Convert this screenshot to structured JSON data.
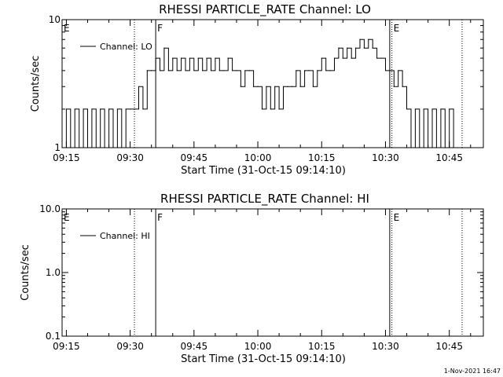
{
  "footer": {
    "timestamp": "1-Nov-2021 16:47"
  },
  "chart_data": [
    {
      "type": "line",
      "title": "RHESSI PARTICLE_RATE Channel: LO",
      "xlabel": "Start Time (31-Oct-15 09:14:10)",
      "ylabel": "Counts/sec",
      "yscale": "log",
      "ylim": [
        1,
        10
      ],
      "yticks": [
        {
          "v": 1,
          "label": "1"
        },
        {
          "v": 10,
          "label": "10"
        }
      ],
      "xlim": [
        "09:14",
        "10:53"
      ],
      "xticks": [
        "09:15",
        "09:30",
        "09:45",
        "10:00",
        "10:15",
        "10:30",
        "10:45"
      ],
      "grid": false,
      "legend": {
        "placement": "top-left",
        "label": "Channel: LO"
      },
      "flag_lines": [
        {
          "time": "09:14",
          "label": "E",
          "style": "solid"
        },
        {
          "time": "09:31",
          "label": "",
          "style": "dotted"
        },
        {
          "time": "09:36",
          "label": "F",
          "style": "solid"
        },
        {
          "time": "10:31",
          "label": "",
          "style": "solid"
        },
        {
          "time": "10:31.5",
          "label": "E",
          "style": "dotted"
        },
        {
          "time": "10:48",
          "label": "",
          "style": "dotted"
        }
      ],
      "series": [
        {
          "name": "Channel: LO",
          "x": [
            "09:14",
            "09:15",
            "09:16",
            "09:17",
            "09:18",
            "09:19",
            "09:20",
            "09:21",
            "09:22",
            "09:23",
            "09:24",
            "09:25",
            "09:26",
            "09:27",
            "09:28",
            "09:29",
            "09:30",
            "09:31",
            "09:32",
            "09:33",
            "09:34",
            "09:35",
            "09:36",
            "09:37",
            "09:38",
            "09:39",
            "09:40",
            "09:41",
            "09:42",
            "09:43",
            "09:44",
            "09:45",
            "09:46",
            "09:47",
            "09:48",
            "09:49",
            "09:50",
            "09:51",
            "09:52",
            "09:53",
            "09:54",
            "09:55",
            "09:56",
            "09:57",
            "09:58",
            "09:59",
            "10:00",
            "10:01",
            "10:02",
            "10:03",
            "10:04",
            "10:05",
            "10:06",
            "10:07",
            "10:08",
            "10:09",
            "10:10",
            "10:11",
            "10:12",
            "10:13",
            "10:14",
            "10:15",
            "10:16",
            "10:17",
            "10:18",
            "10:19",
            "10:20",
            "10:21",
            "10:22",
            "10:23",
            "10:24",
            "10:25",
            "10:26",
            "10:27",
            "10:28",
            "10:29",
            "10:30",
            "10:31",
            "10:32",
            "10:33",
            "10:34",
            "10:35",
            "10:36",
            "10:37",
            "10:38",
            "10:39",
            "10:40",
            "10:41",
            "10:42",
            "10:43",
            "10:44",
            "10:45",
            "10:46",
            "10:47",
            "10:48"
          ],
          "values": [
            1,
            2,
            1,
            2,
            1,
            2,
            1,
            2,
            1,
            2,
            1,
            2,
            1,
            2,
            1,
            2,
            2,
            2,
            3,
            2,
            4,
            4,
            5,
            4,
            6,
            4,
            5,
            4,
            5,
            4,
            5,
            4,
            5,
            4,
            5,
            4,
            5,
            4,
            4,
            5,
            4,
            4,
            3,
            4,
            4,
            3,
            3,
            2,
            3,
            2,
            3,
            2,
            3,
            3,
            3,
            4,
            3,
            4,
            4,
            3,
            4,
            5,
            4,
            4,
            5,
            6,
            5,
            6,
            5,
            6,
            7,
            6,
            7,
            6,
            5,
            5,
            4,
            4,
            3,
            4,
            3,
            2,
            1,
            2,
            1,
            2,
            1,
            2,
            1,
            2,
            1,
            2,
            1,
            1,
            1
          ]
        }
      ]
    },
    {
      "type": "line",
      "title": "RHESSI PARTICLE_RATE Channel: HI",
      "xlabel": "Start Time (31-Oct-15 09:14:10)",
      "ylabel": "Counts/sec",
      "yscale": "log",
      "ylim": [
        0.1,
        10
      ],
      "yticks": [
        {
          "v": 0.1,
          "label": "0.1"
        },
        {
          "v": 1,
          "label": "1.0"
        },
        {
          "v": 10,
          "label": "10.0"
        }
      ],
      "xlim": [
        "09:14",
        "10:53"
      ],
      "xticks": [
        "09:15",
        "09:30",
        "09:45",
        "10:00",
        "10:15",
        "10:30",
        "10:45"
      ],
      "grid": false,
      "legend": {
        "placement": "top-left",
        "label": "Channel: HI"
      },
      "flag_lines": [
        {
          "time": "09:14",
          "label": "E",
          "style": "solid"
        },
        {
          "time": "09:31",
          "label": "",
          "style": "dotted"
        },
        {
          "time": "09:36",
          "label": "F",
          "style": "solid"
        },
        {
          "time": "10:31",
          "label": "",
          "style": "solid"
        },
        {
          "time": "10:31.5",
          "label": "E",
          "style": "dotted"
        },
        {
          "time": "10:48",
          "label": "",
          "style": "dotted"
        }
      ],
      "series": [
        {
          "name": "Channel: HI",
          "x": [],
          "values": []
        }
      ]
    }
  ]
}
